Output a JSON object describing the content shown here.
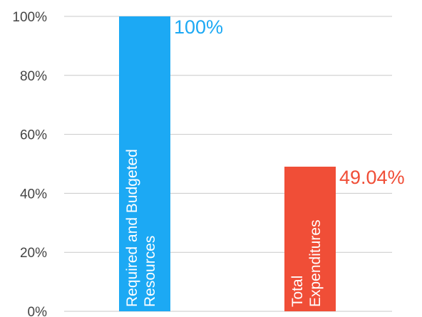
{
  "chart_data": {
    "type": "bar",
    "categories": [
      [
        "Required and Budgeted",
        "Resources"
      ],
      [
        "Total",
        "Expenditures"
      ]
    ],
    "values": [
      100,
      49.04
    ],
    "data_labels": [
      "100%",
      "49.04%"
    ],
    "colors": [
      "#1ca9f4",
      "#f04e37"
    ],
    "ylim": [
      0,
      100
    ],
    "yticks": [
      0,
      20,
      40,
      60,
      80,
      100
    ],
    "ytick_labels": [
      "0%",
      "20%",
      "40%",
      "60%",
      "80%",
      "100%"
    ],
    "grid": true,
    "title": "",
    "xlabel": "",
    "ylabel": ""
  }
}
